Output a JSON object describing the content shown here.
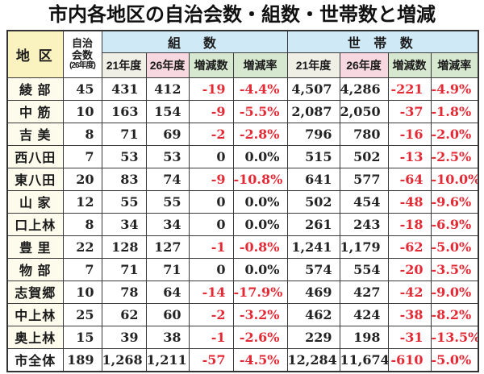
{
  "title": "市内各地区の自治会数・組数・世帯数と増減",
  "colors": {
    "yellow": "#fbf3bf",
    "blue": "#cfe9f6",
    "pink26": "#f8d8e0",
    "green": "#d6e9d0",
    "gray21": "#f0efe6",
    "cream": "#fdfbec",
    "red": "#e42a35"
  },
  "table": {
    "header": {
      "district": "地 区",
      "jichikai": "自治会数",
      "jichikai_note": "(26年度)",
      "groups": "組　数",
      "households": "世 帯 数",
      "sub": [
        "21年度",
        "26年度",
        "増減数",
        "増減率"
      ]
    },
    "rows": [
      {
        "district": "綾 部",
        "jichikai": "45",
        "group": [
          "431",
          "412",
          "-19",
          "-4.4%"
        ],
        "household": [
          "4,507",
          "4,286",
          "-221",
          "-4.9%"
        ]
      },
      {
        "district": "中 筋",
        "jichikai": "10",
        "group": [
          "163",
          "154",
          "-9",
          "-5.5%"
        ],
        "household": [
          "2,087",
          "2,050",
          "-37",
          "-1.8%"
        ]
      },
      {
        "district": "吉 美",
        "jichikai": "8",
        "group": [
          "71",
          "69",
          "-2",
          "-2.8%"
        ],
        "household": [
          "796",
          "780",
          "-16",
          "-2.0%"
        ]
      },
      {
        "district": "西八田",
        "jichikai": "7",
        "group": [
          "53",
          "53",
          "0",
          "0.0%"
        ],
        "household": [
          "515",
          "502",
          "-13",
          "-2.5%"
        ]
      },
      {
        "district": "東八田",
        "jichikai": "20",
        "group": [
          "83",
          "74",
          "-9",
          "-10.8%"
        ],
        "household": [
          "641",
          "577",
          "-64",
          "-10.0%"
        ]
      },
      {
        "district": "山 家",
        "jichikai": "12",
        "group": [
          "55",
          "55",
          "0",
          "0.0%"
        ],
        "household": [
          "502",
          "454",
          "-48",
          "-9.6%"
        ]
      },
      {
        "district": "口上林",
        "jichikai": "8",
        "group": [
          "34",
          "34",
          "0",
          "0.0%"
        ],
        "household": [
          "261",
          "243",
          "-18",
          "-6.9%"
        ]
      },
      {
        "district": "豊 里",
        "jichikai": "22",
        "group": [
          "128",
          "127",
          "-1",
          "-0.8%"
        ],
        "household": [
          "1,241",
          "1,179",
          "-62",
          "-5.0%"
        ]
      },
      {
        "district": "物 部",
        "jichikai": "7",
        "group": [
          "71",
          "71",
          "0",
          "0.0%"
        ],
        "household": [
          "574",
          "554",
          "-20",
          "-3.5%"
        ]
      },
      {
        "district": "志賀郷",
        "jichikai": "10",
        "group": [
          "78",
          "64",
          "-14",
          "-17.9%"
        ],
        "household": [
          "469",
          "427",
          "-42",
          "-9.0%"
        ]
      },
      {
        "district": "中上林",
        "jichikai": "25",
        "group": [
          "62",
          "60",
          "-2",
          "-3.2%"
        ],
        "household": [
          "462",
          "424",
          "-38",
          "-8.2%"
        ]
      },
      {
        "district": "奥上林",
        "jichikai": "15",
        "group": [
          "39",
          "38",
          "-1",
          "-2.6%"
        ],
        "household": [
          "229",
          "198",
          "-31",
          "-13.5%"
        ]
      },
      {
        "district": "市全体",
        "jichikai": "189",
        "group": [
          "1,268",
          "1,211",
          "-57",
          "-4.5%"
        ],
        "household": [
          "12,284",
          "11,674",
          "-610",
          "-5.0%"
        ],
        "is_total": true
      }
    ]
  }
}
